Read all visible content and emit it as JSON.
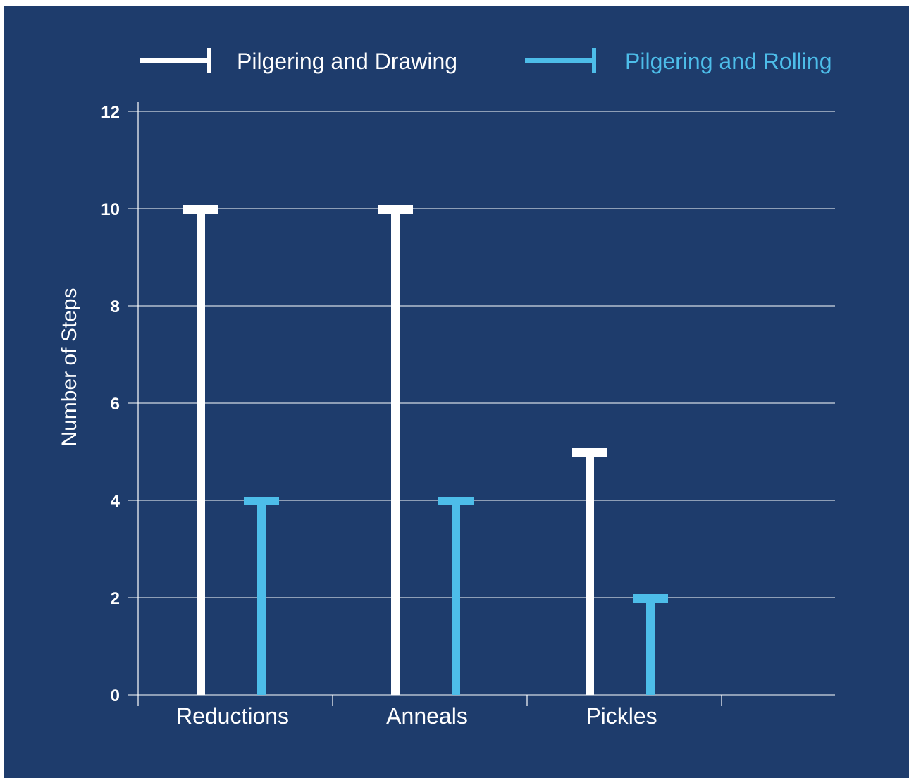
{
  "colors": {
    "background": "#1e3c6c",
    "series_1": "#ffffff",
    "series_2": "#4dbde9",
    "grid": "#ffffff"
  },
  "chart_data": {
    "type": "bar",
    "style": "lollipop-with-flat-caps",
    "title": "",
    "xlabel": "",
    "ylabel": "Number of Steps",
    "categories": [
      "Reductions",
      "Anneals",
      "Pickles"
    ],
    "series": [
      {
        "name": "Pilgering and Drawing",
        "values": [
          10,
          10,
          5
        ],
        "color": "#ffffff"
      },
      {
        "name": "Pilgering and Rolling",
        "values": [
          4,
          4,
          2
        ],
        "color": "#4dbde9"
      }
    ],
    "ylim": [
      0,
      12
    ],
    "yticks": [
      "0",
      "2",
      "4",
      "6",
      "8",
      "10",
      "12"
    ],
    "grid": true,
    "legend_position": "top"
  }
}
